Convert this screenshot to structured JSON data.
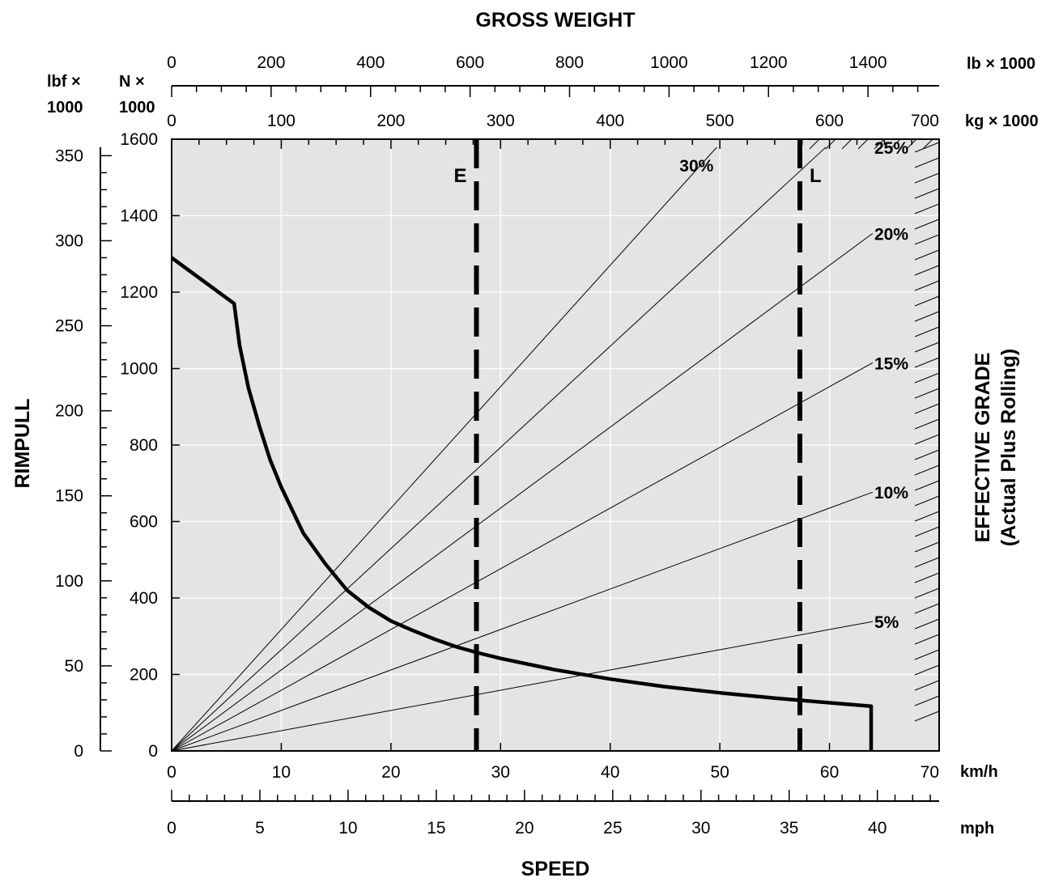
{
  "chart_data": {
    "type": "line",
    "title": "GROSS WEIGHT",
    "x_title": "SPEED",
    "y_title": "RIMPULL",
    "right_title_line1": "EFFECTIVE GRADE",
    "right_title_line2": "(Actual Plus Rolling)",
    "x_primary": {
      "unit": "km/h",
      "min": 0,
      "max": 70,
      "ticks": [
        0,
        10,
        20,
        30,
        40,
        50,
        60,
        70
      ]
    },
    "x_secondary": {
      "unit": "mph",
      "min": 0,
      "max": 43.5,
      "ticks": [
        0,
        5,
        10,
        15,
        20,
        25,
        30,
        35,
        40
      ]
    },
    "y_primary": {
      "unit_line1": "N ×",
      "unit_line2": "1000",
      "min": 0,
      "max": 1600,
      "ticks": [
        0,
        200,
        400,
        600,
        800,
        1000,
        1200,
        1400,
        1600
      ]
    },
    "y_secondary": {
      "unit_line1": "lbf ×",
      "unit_line2": "1000",
      "min": 0,
      "max": 359.7,
      "ticks": [
        0,
        50,
        100,
        150,
        200,
        250,
        300,
        350
      ]
    },
    "top_lb": {
      "unit": "lb × 1000",
      "min": 0,
      "max": 1543,
      "ticks": [
        0,
        200,
        400,
        600,
        800,
        1000,
        1200,
        1400
      ]
    },
    "top_kg": {
      "unit": "kg × 1000",
      "min": 0,
      "max": 700,
      "ticks": [
        0,
        100,
        200,
        300,
        400,
        500,
        600,
        700
      ]
    },
    "grid": true,
    "series": [
      {
        "name": "Rimpull",
        "x_unit": "km/h",
        "y_unit": "N × 1000",
        "points": [
          [
            0,
            1290
          ],
          [
            5.7,
            1170
          ],
          [
            6.2,
            1060
          ],
          [
            7,
            950
          ],
          [
            8,
            850
          ],
          [
            9,
            760
          ],
          [
            10,
            690
          ],
          [
            12,
            570
          ],
          [
            14,
            490
          ],
          [
            16,
            420
          ],
          [
            18,
            375
          ],
          [
            20,
            340
          ],
          [
            22,
            315
          ],
          [
            24,
            292
          ],
          [
            26,
            272
          ],
          [
            28,
            256
          ],
          [
            30,
            242
          ],
          [
            35,
            212
          ],
          [
            40,
            188
          ],
          [
            45,
            168
          ],
          [
            50,
            152
          ],
          [
            55,
            138
          ],
          [
            60,
            126
          ],
          [
            63.8,
            117
          ],
          [
            63.8,
            0
          ]
        ]
      }
    ],
    "grade_lines": [
      {
        "label": "30%",
        "grade": 30
      },
      {
        "label": "25%",
        "grade": 25
      },
      {
        "label": "20%",
        "grade": 20
      },
      {
        "label": "15%",
        "grade": 15
      },
      {
        "label": "10%",
        "grade": 10
      },
      {
        "label": "5%",
        "grade": 5
      }
    ],
    "markers": [
      {
        "label": "E",
        "kg": 278
      },
      {
        "label": "L",
        "kg": 573
      }
    ]
  },
  "colors": {
    "plot_background": "#e3e4e6",
    "grid": "#ffffff",
    "ink": "#000000"
  }
}
